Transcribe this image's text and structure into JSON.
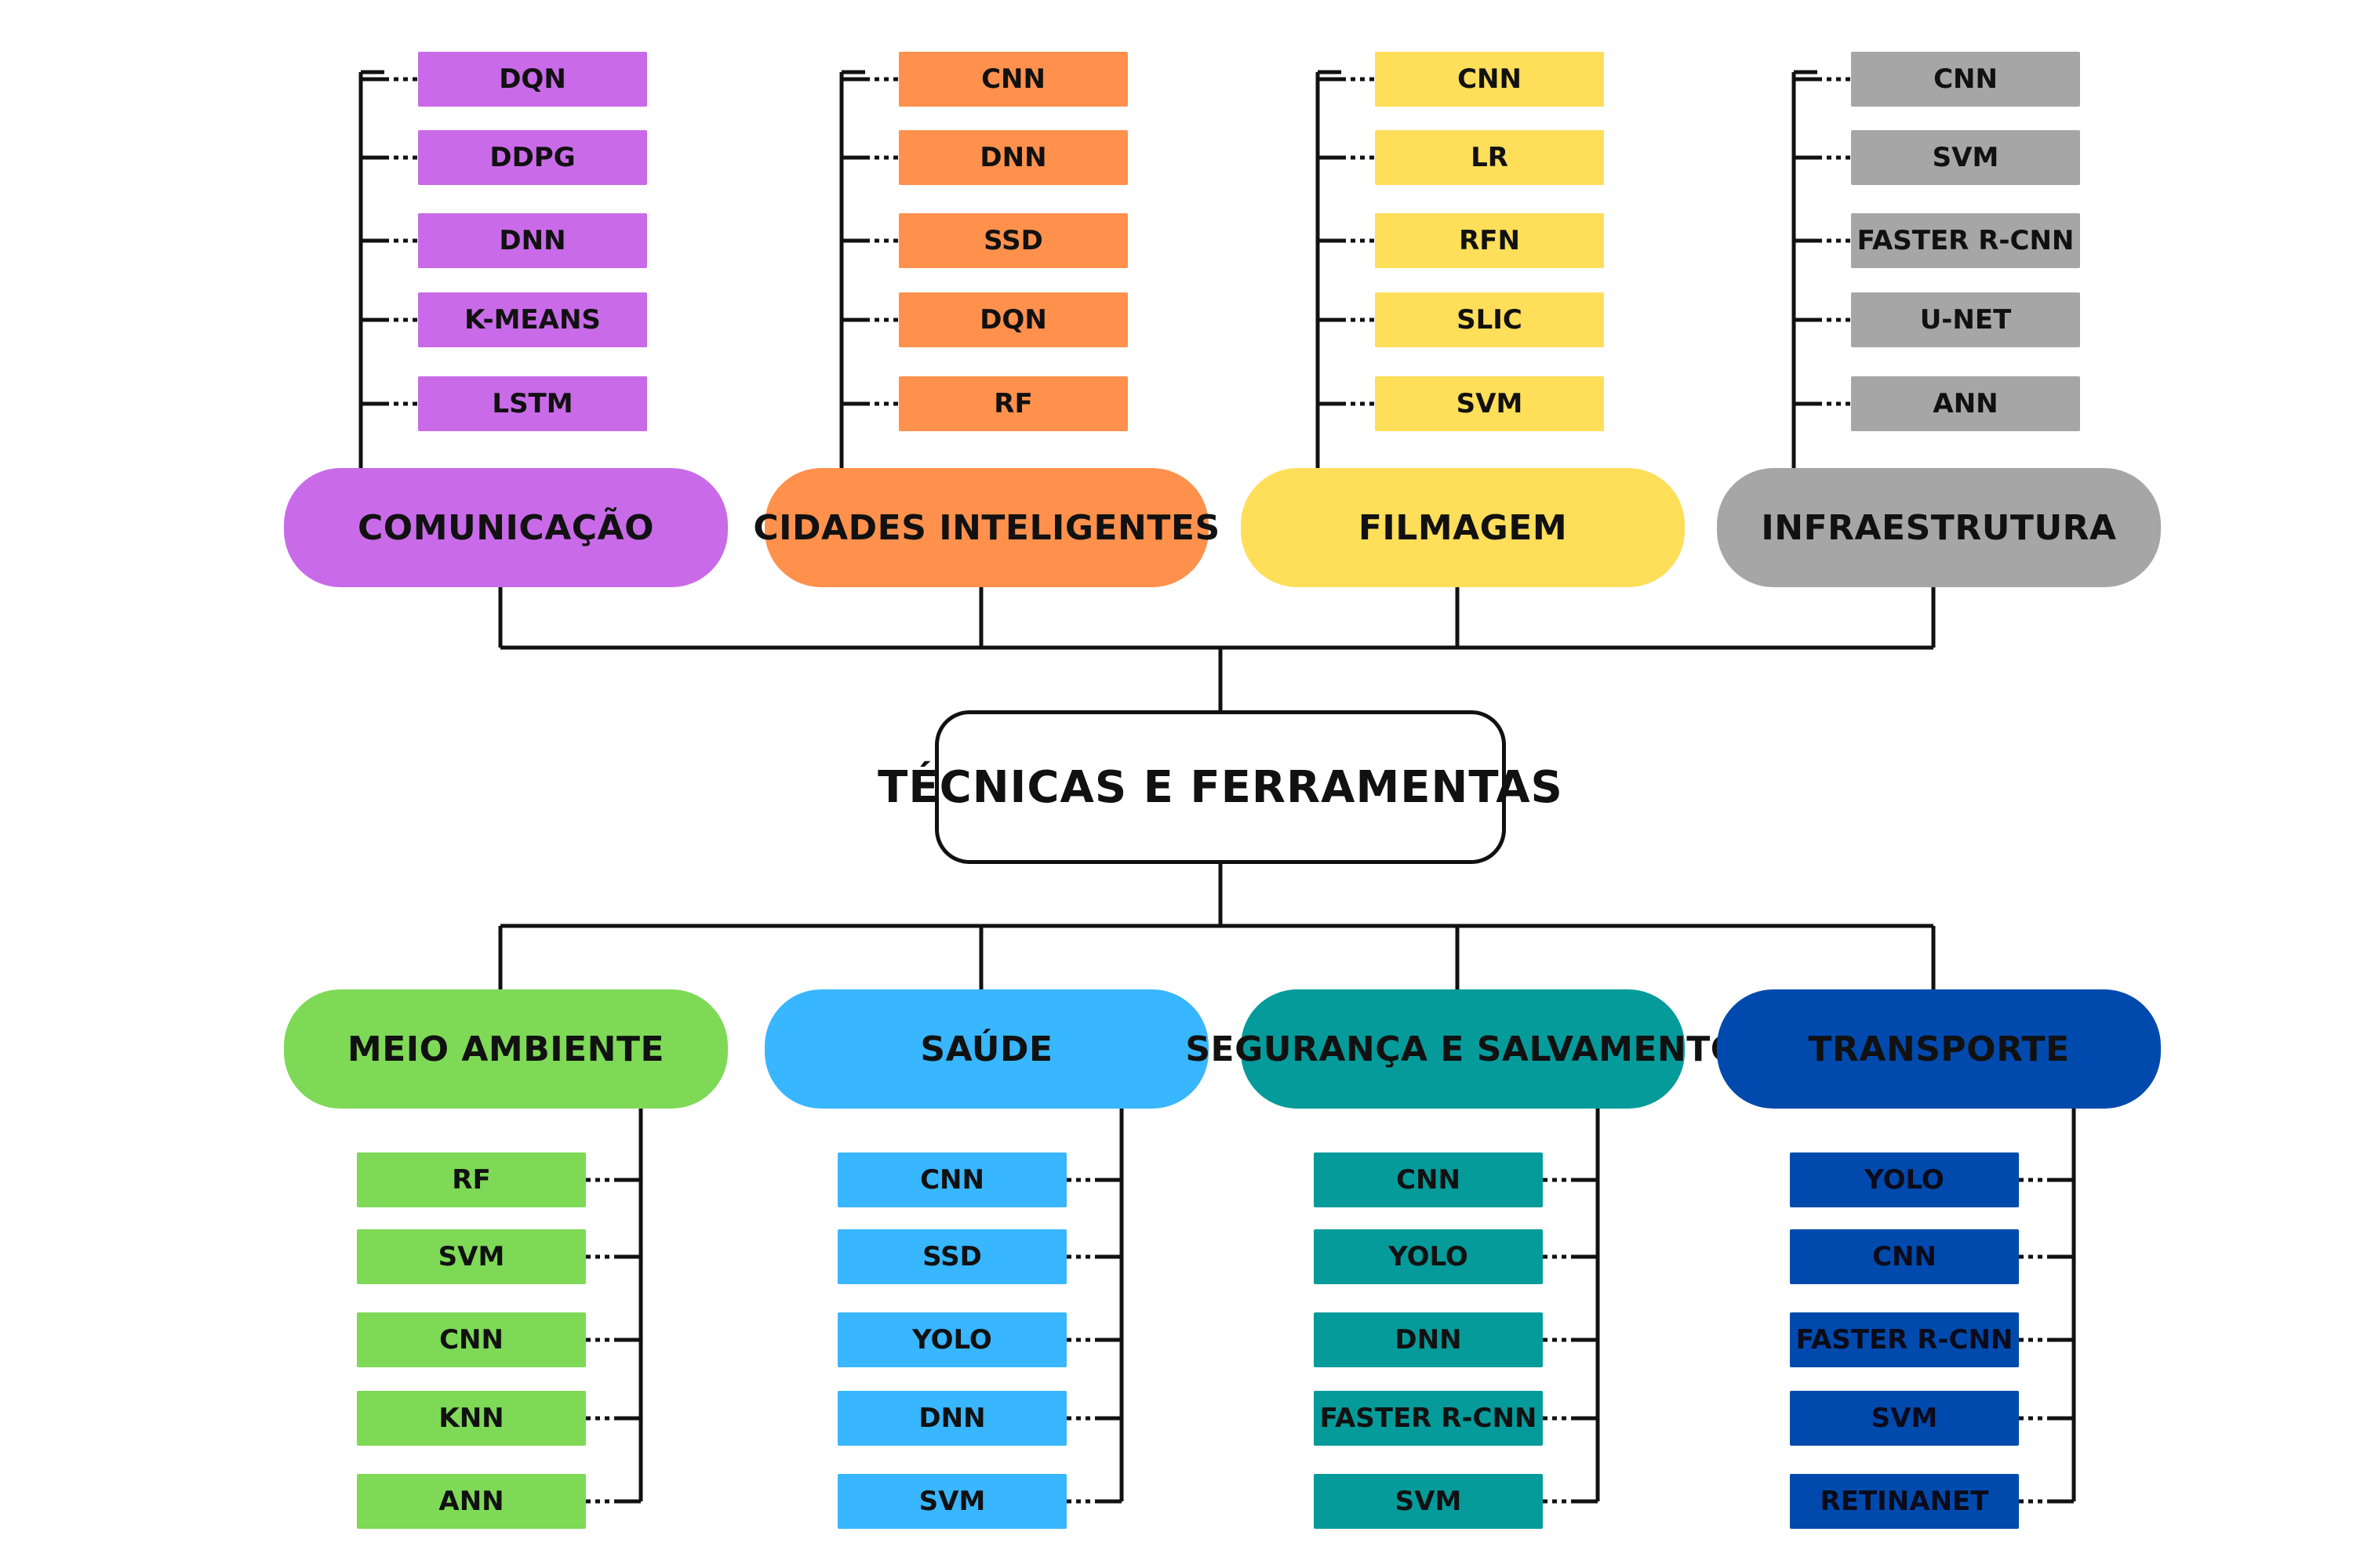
{
  "root": {
    "label": "TÉCNICAS E FERRAMENTAS"
  },
  "top_categories": [
    {
      "label": "COMUNICAÇÃO",
      "color": "#C96BE8",
      "items": [
        "DQN",
        "DDPG",
        "DNN",
        "K-MEANS",
        "LSTM"
      ]
    },
    {
      "label": "CIDADES INTELIGENTES",
      "color": "#FF914D",
      "items": [
        "CNN",
        "DNN",
        "SSD",
        "DQN",
        "RF"
      ]
    },
    {
      "label": "FILMAGEM",
      "color": "#FFDE59",
      "items": [
        "CNN",
        "LR",
        "RFN",
        "SLIC",
        "SVM"
      ]
    },
    {
      "label": "INFRAESTRUTURA",
      "color": "#A6A6A6",
      "items": [
        "CNN",
        "SVM",
        "FASTER R-CNN",
        "U-NET",
        "ANN"
      ]
    }
  ],
  "bottom_categories": [
    {
      "label": "MEIO AMBIENTE",
      "color": "#7ED957",
      "items": [
        "RF",
        "SVM",
        "CNN",
        "KNN",
        "ANN"
      ]
    },
    {
      "label": "SAÚDE",
      "color": "#38B6FF",
      "items": [
        "CNN",
        "SSD",
        "YOLO",
        "DNN",
        "SVM"
      ]
    },
    {
      "label": "SEGURANÇA E SALVAMENTO",
      "color": "#059B9A",
      "items": [
        "CNN",
        "YOLO",
        "DNN",
        "FASTER R-CNN",
        "SVM"
      ]
    },
    {
      "label": "TRANSPORTE",
      "color": "#004AAD",
      "items": [
        "YOLO",
        "CNN",
        "FASTER R-CNN",
        "SVM",
        "RETINANET"
      ]
    }
  ]
}
